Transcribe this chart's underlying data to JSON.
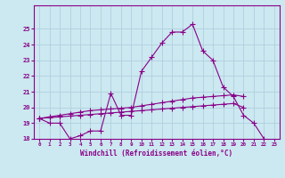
{
  "xlabel": "Windchill (Refroidissement éolien,°C)",
  "x_values": [
    0,
    1,
    2,
    3,
    4,
    5,
    6,
    7,
    8,
    9,
    10,
    11,
    12,
    13,
    14,
    15,
    16,
    17,
    18,
    19,
    20,
    21,
    22,
    23
  ],
  "line1": [
    19.3,
    19.0,
    19.0,
    18.0,
    18.2,
    18.5,
    18.5,
    20.9,
    19.5,
    19.5,
    22.3,
    23.2,
    24.1,
    24.8,
    24.8,
    25.3,
    23.6,
    23.0,
    21.3,
    20.7,
    19.5,
    19.0,
    18.0,
    null
  ],
  "line2": [
    19.3,
    19.4,
    19.5,
    19.6,
    19.7,
    19.8,
    19.85,
    19.9,
    19.95,
    20.0,
    20.1,
    20.2,
    20.3,
    20.4,
    20.5,
    20.6,
    20.65,
    20.7,
    20.75,
    20.8,
    20.7,
    null,
    null,
    null
  ],
  "line3": [
    19.3,
    19.35,
    19.4,
    19.45,
    19.5,
    19.55,
    19.6,
    19.65,
    19.7,
    19.75,
    19.8,
    19.85,
    19.9,
    19.95,
    20.0,
    20.05,
    20.1,
    20.15,
    20.2,
    20.25,
    20.0,
    null,
    null,
    null
  ],
  "bg_color": "#cce8f0",
  "grid_color": "#aaccdd",
  "line_color": "#880088",
  "ylim": [
    18,
    26
  ],
  "yticks": [
    18,
    19,
    20,
    21,
    22,
    23,
    24,
    25
  ],
  "xlim": [
    -0.5,
    23.5
  ]
}
